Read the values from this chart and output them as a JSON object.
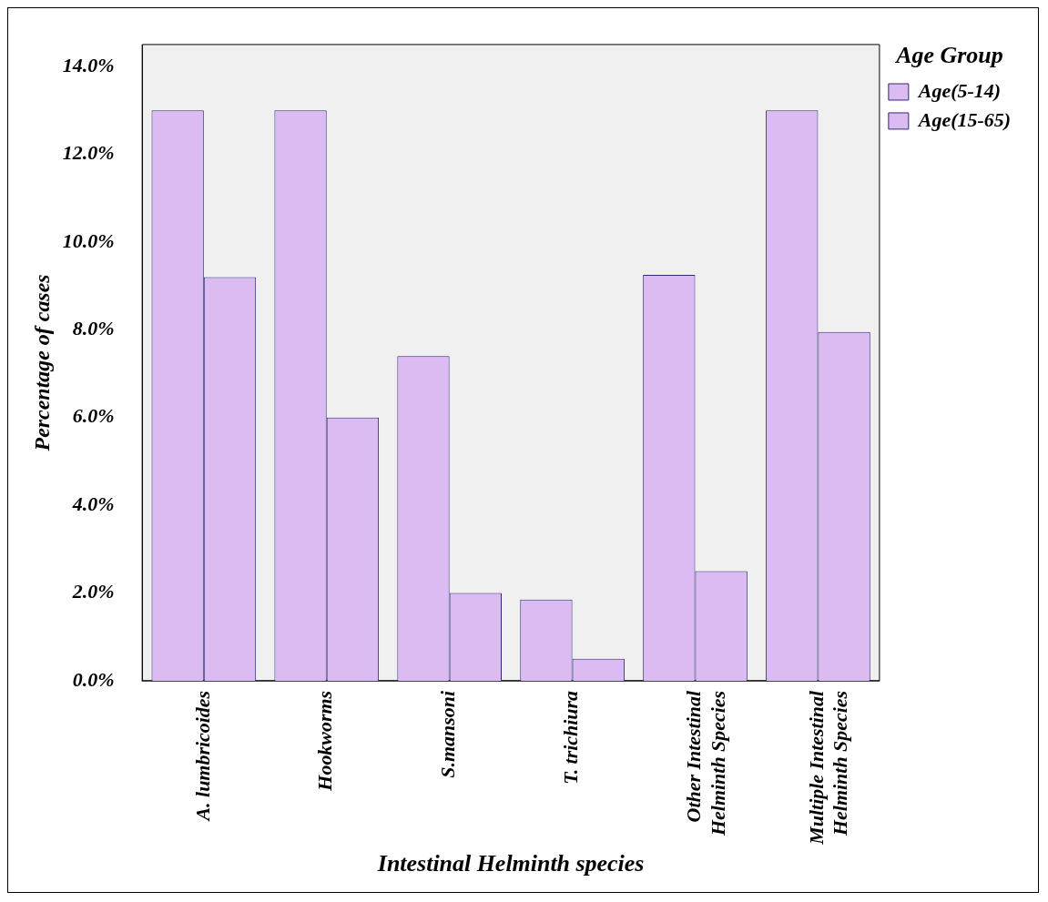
{
  "chart_data": {
    "type": "bar",
    "xlabel": "Intestinal Helminth species",
    "ylabel": "Percentage of cases",
    "legend_title": "Age Group",
    "legend": "top right",
    "grid": false,
    "categories": [
      "A. lumbricoides",
      "Hookworms",
      "S.mansoni",
      "T. trichiura",
      "Other Intestinal Helminth Species",
      "Multiple Intestinal Helminth Species"
    ],
    "series": [
      {
        "name": "Age(5-14)",
        "color": "#dcbaf2",
        "values": [
          13.0,
          13.0,
          7.4,
          1.85,
          9.25,
          13.0
        ]
      },
      {
        "name": "Age(15-65)",
        "color": "#dcbaf2",
        "values": [
          9.2,
          6.0,
          2.0,
          0.5,
          2.5,
          7.95
        ]
      }
    ],
    "ylim": [
      0,
      14.5
    ],
    "yticks": [
      {
        "value": 0,
        "label": "0.0%"
      },
      {
        "value": 2,
        "label": "2.0%"
      },
      {
        "value": 4,
        "label": "4.0%"
      },
      {
        "value": 6,
        "label": "6.0%"
      },
      {
        "value": 8,
        "label": "8.0%"
      },
      {
        "value": 10,
        "label": "10.0%"
      },
      {
        "value": 12,
        "label": "12.0%"
      },
      {
        "value": 14,
        "label": "14.0%"
      }
    ]
  }
}
